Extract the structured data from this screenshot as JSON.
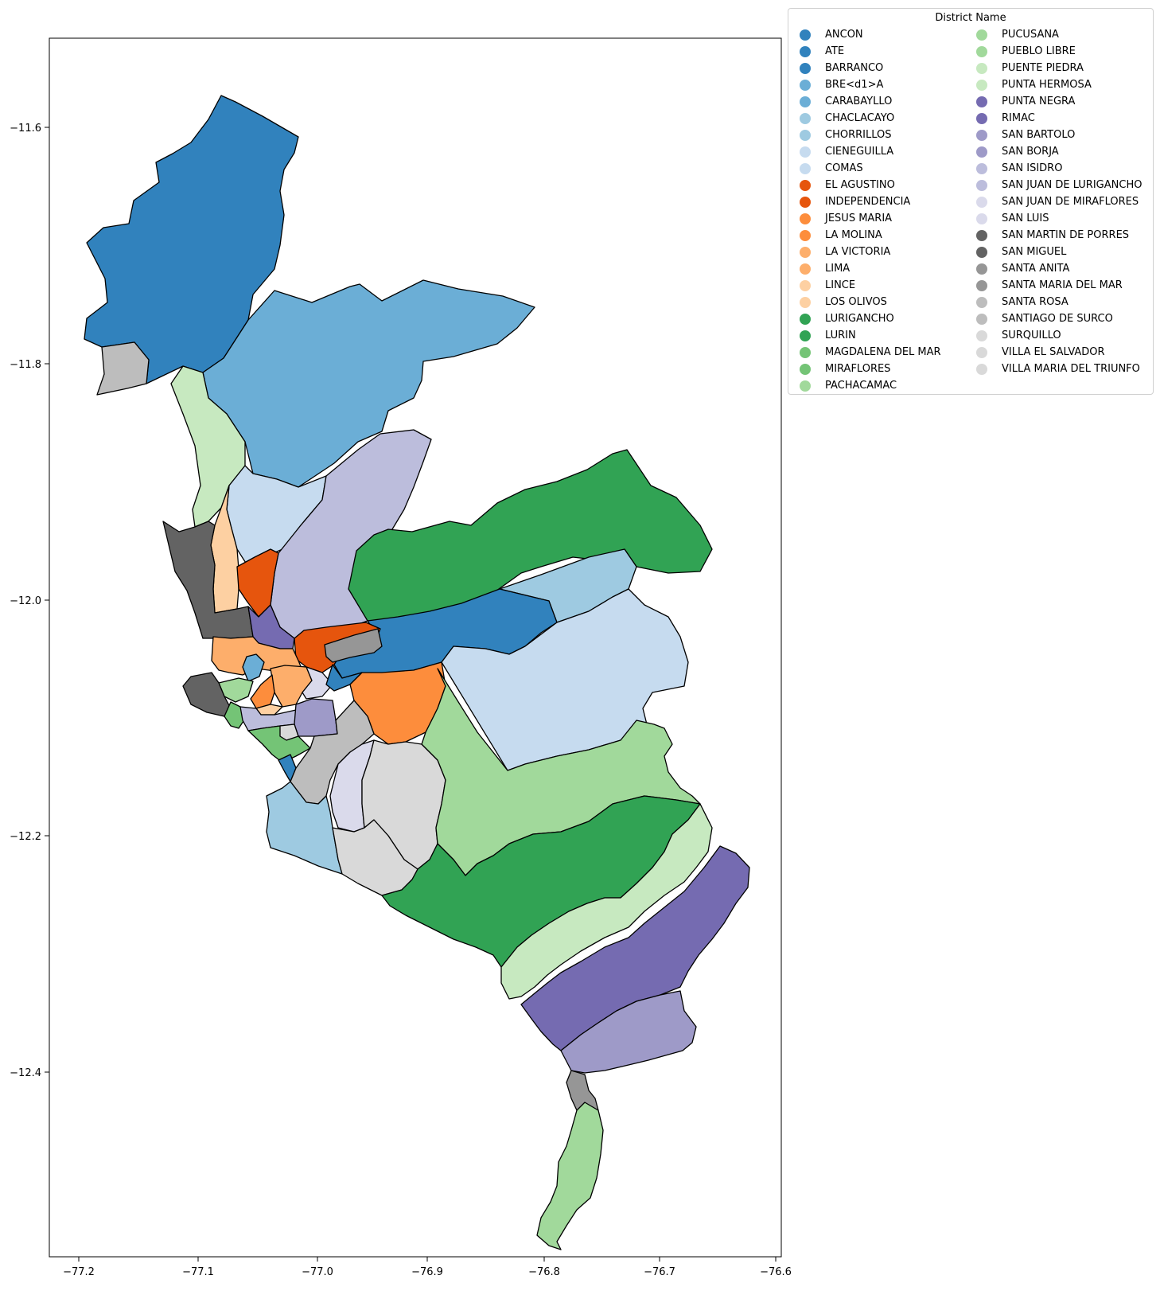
{
  "map": {
    "x_ticks": [
      "−77.2",
      "−77.1",
      "−77.0",
      "−76.9",
      "−76.8",
      "−76.7",
      "−76.6"
    ],
    "y_ticks": [
      "−11.6",
      "−11.8",
      "−12.0",
      "−12.2",
      "−12.4"
    ]
  },
  "legend": {
    "title": "District Name",
    "items": [
      {
        "name": "ANCON",
        "color": "#3182bd"
      },
      {
        "name": "ATE",
        "color": "#3182bd"
      },
      {
        "name": "BARRANCO",
        "color": "#3182bd"
      },
      {
        "name": "BRE<d1>A",
        "color": "#6baed6"
      },
      {
        "name": "CARABAYLLO",
        "color": "#6baed6"
      },
      {
        "name": "CHACLACAYO",
        "color": "#9ecae1"
      },
      {
        "name": "CHORRILLOS",
        "color": "#9ecae1"
      },
      {
        "name": "CIENEGUILLA",
        "color": "#c6dbef"
      },
      {
        "name": "COMAS",
        "color": "#c6dbef"
      },
      {
        "name": "EL AGUSTINO",
        "color": "#e6550d"
      },
      {
        "name": "INDEPENDENCIA",
        "color": "#e6550d"
      },
      {
        "name": "JESUS MARIA",
        "color": "#fd8d3c"
      },
      {
        "name": "LA MOLINA",
        "color": "#fd8d3c"
      },
      {
        "name": "LA VICTORIA",
        "color": "#fdae6b"
      },
      {
        "name": "LIMA",
        "color": "#fdae6b"
      },
      {
        "name": "LINCE",
        "color": "#fdd0a2"
      },
      {
        "name": "LOS OLIVOS",
        "color": "#fdd0a2"
      },
      {
        "name": "LURIGANCHO",
        "color": "#31a354"
      },
      {
        "name": "LURIN",
        "color": "#31a354"
      },
      {
        "name": "MAGDALENA DEL MAR",
        "color": "#74c476"
      },
      {
        "name": "MIRAFLORES",
        "color": "#74c476"
      },
      {
        "name": "PACHACAMAC",
        "color": "#a1d99b"
      },
      {
        "name": "PUCUSANA",
        "color": "#a1d99b"
      },
      {
        "name": "PUEBLO LIBRE",
        "color": "#a1d99b"
      },
      {
        "name": "PUENTE PIEDRA",
        "color": "#c7e9c0"
      },
      {
        "name": "PUNTA HERMOSA",
        "color": "#c7e9c0"
      },
      {
        "name": "PUNTA NEGRA",
        "color": "#756bb1"
      },
      {
        "name": "RIMAC",
        "color": "#756bb1"
      },
      {
        "name": "SAN BARTOLO",
        "color": "#9e9ac8"
      },
      {
        "name": "SAN BORJA",
        "color": "#9e9ac8"
      },
      {
        "name": "SAN ISIDRO",
        "color": "#bcbddc"
      },
      {
        "name": "SAN JUAN DE LURIGANCHO",
        "color": "#bcbddc"
      },
      {
        "name": "SAN JUAN DE MIRAFLORES",
        "color": "#dadaeb"
      },
      {
        "name": "SAN LUIS",
        "color": "#dadaeb"
      },
      {
        "name": "SAN MARTIN DE PORRES",
        "color": "#636363"
      },
      {
        "name": "SAN MIGUEL",
        "color": "#636363"
      },
      {
        "name": "SANTA ANITA",
        "color": "#969696"
      },
      {
        "name": "SANTA MARIA DEL MAR",
        "color": "#969696"
      },
      {
        "name": "SANTA ROSA",
        "color": "#bdbdbd"
      },
      {
        "name": "SANTIAGO DE SURCO",
        "color": "#bdbdbd"
      },
      {
        "name": "SURQUILLO",
        "color": "#d9d9d9"
      },
      {
        "name": "VILLA EL SALVADOR",
        "color": "#d9d9d9"
      },
      {
        "name": "VILLA MARIA DEL TRIUNFO",
        "color": "#d9d9d9"
      }
    ]
  }
}
